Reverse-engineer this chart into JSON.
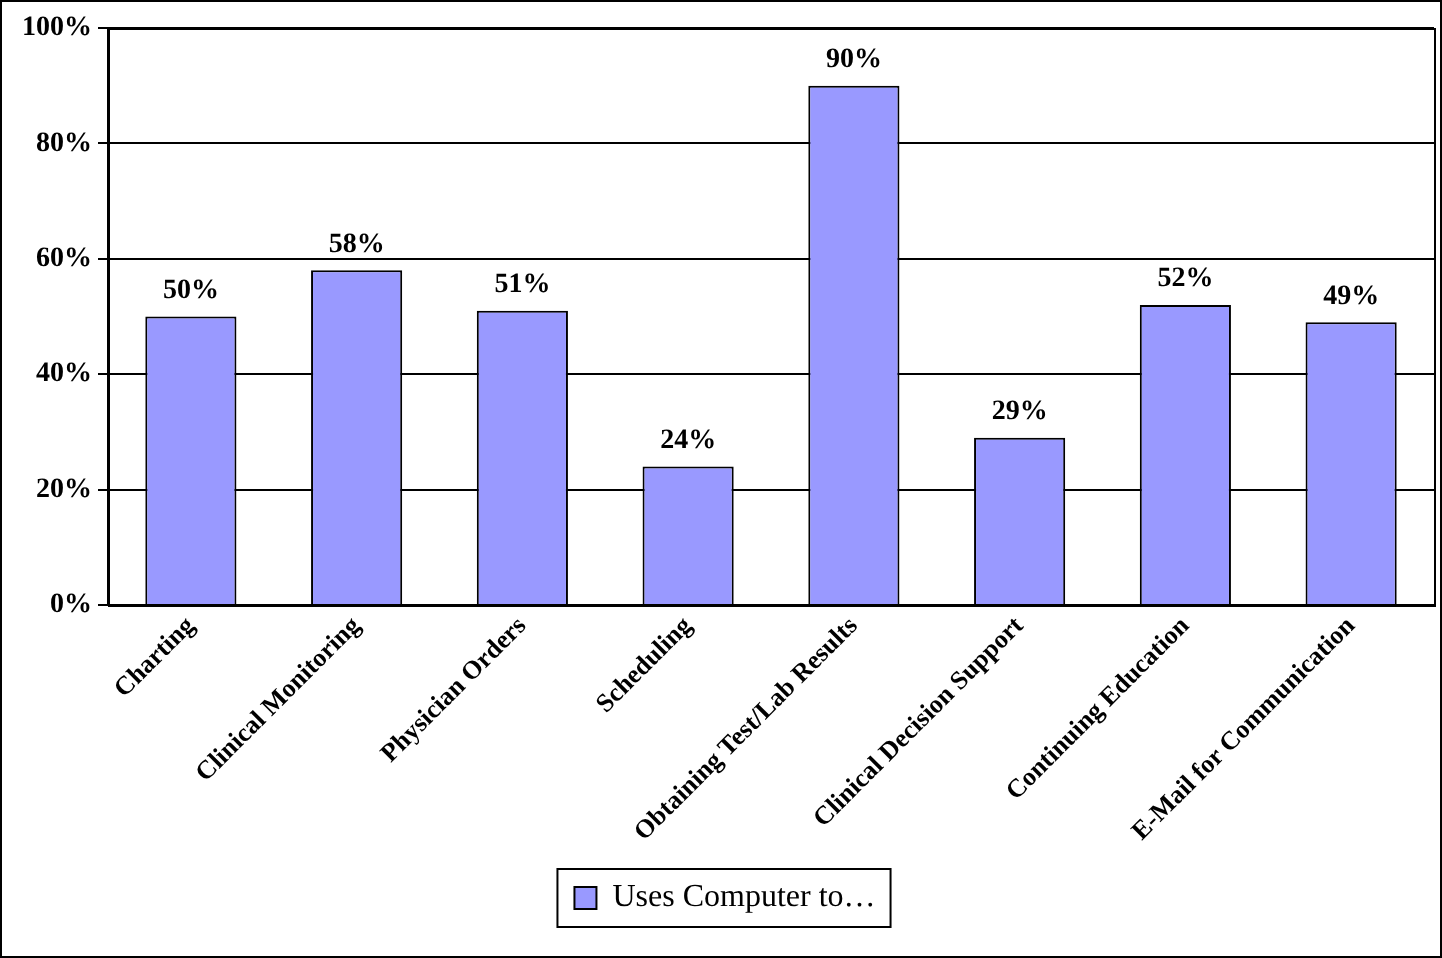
{
  "chart_data": {
    "type": "bar",
    "categories": [
      "Charting",
      "Clinical Monitoring",
      "Physician Orders",
      "Scheduling",
      "Obtaining Test/Lab Results",
      "Clinical Decision Support",
      "Continuing Education",
      "E-Mail for Communication"
    ],
    "series": [
      {
        "name": "Uses Computer to…",
        "color": "#9999ff",
        "values": [
          50,
          58,
          51,
          24,
          90,
          29,
          52,
          49
        ],
        "value_labels": [
          "50%",
          "58%",
          "51%",
          "24%",
          "90%",
          "29%",
          "52%",
          "49%"
        ]
      }
    ],
    "ylim": [
      0,
      100
    ],
    "yticks": [
      {
        "value": 0,
        "label": "0%"
      },
      {
        "value": 20,
        "label": "20%"
      },
      {
        "value": 40,
        "label": "40%"
      },
      {
        "value": 60,
        "label": "60%"
      },
      {
        "value": 80,
        "label": "80%"
      },
      {
        "value": 100,
        "label": "100%"
      }
    ],
    "grid": "y",
    "legend": "bottom"
  }
}
